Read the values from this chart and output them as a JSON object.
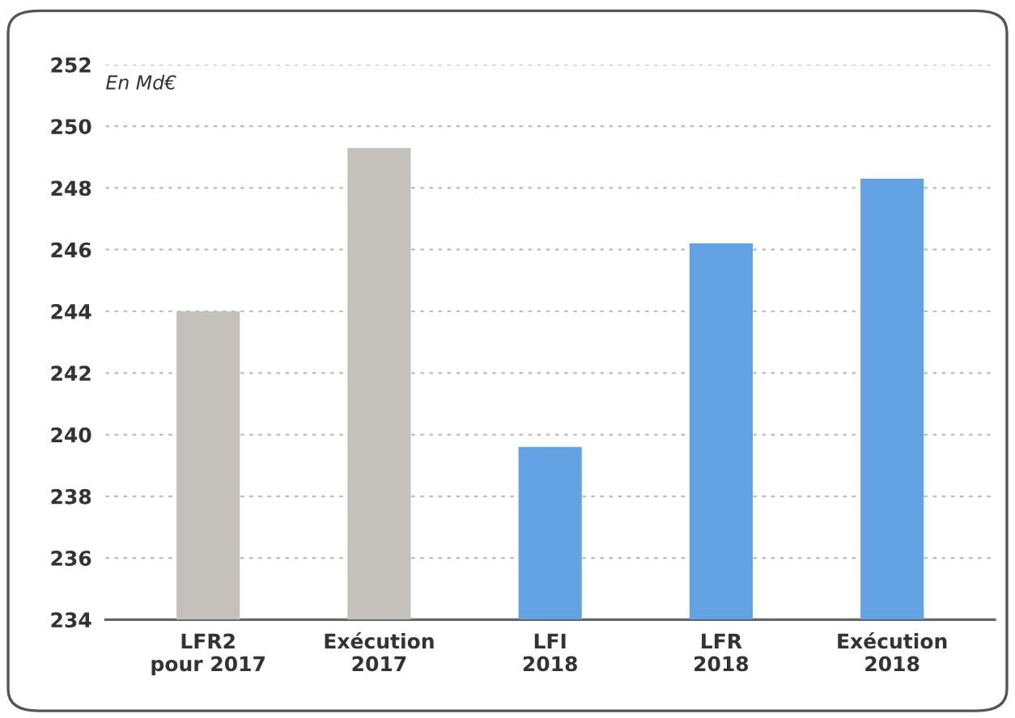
{
  "chart_data": {
    "type": "bar",
    "subtitle": "En Md€",
    "categories": [
      "LFR2\npour 2017",
      "Exécution\n2017",
      "LFI\n2018",
      "LFR\n2018",
      "Exécution\n2018"
    ],
    "values": [
      244.0,
      249.3,
      239.6,
      246.2,
      248.3
    ],
    "colors": [
      "#c4c1bd",
      "#c4c1bd",
      "#64a3e3",
      "#64a3e3",
      "#64a3e3"
    ],
    "ylim": [
      234,
      252
    ],
    "yticks": [
      234,
      236,
      238,
      240,
      242,
      244,
      246,
      248,
      250,
      252
    ],
    "grid": "y"
  }
}
